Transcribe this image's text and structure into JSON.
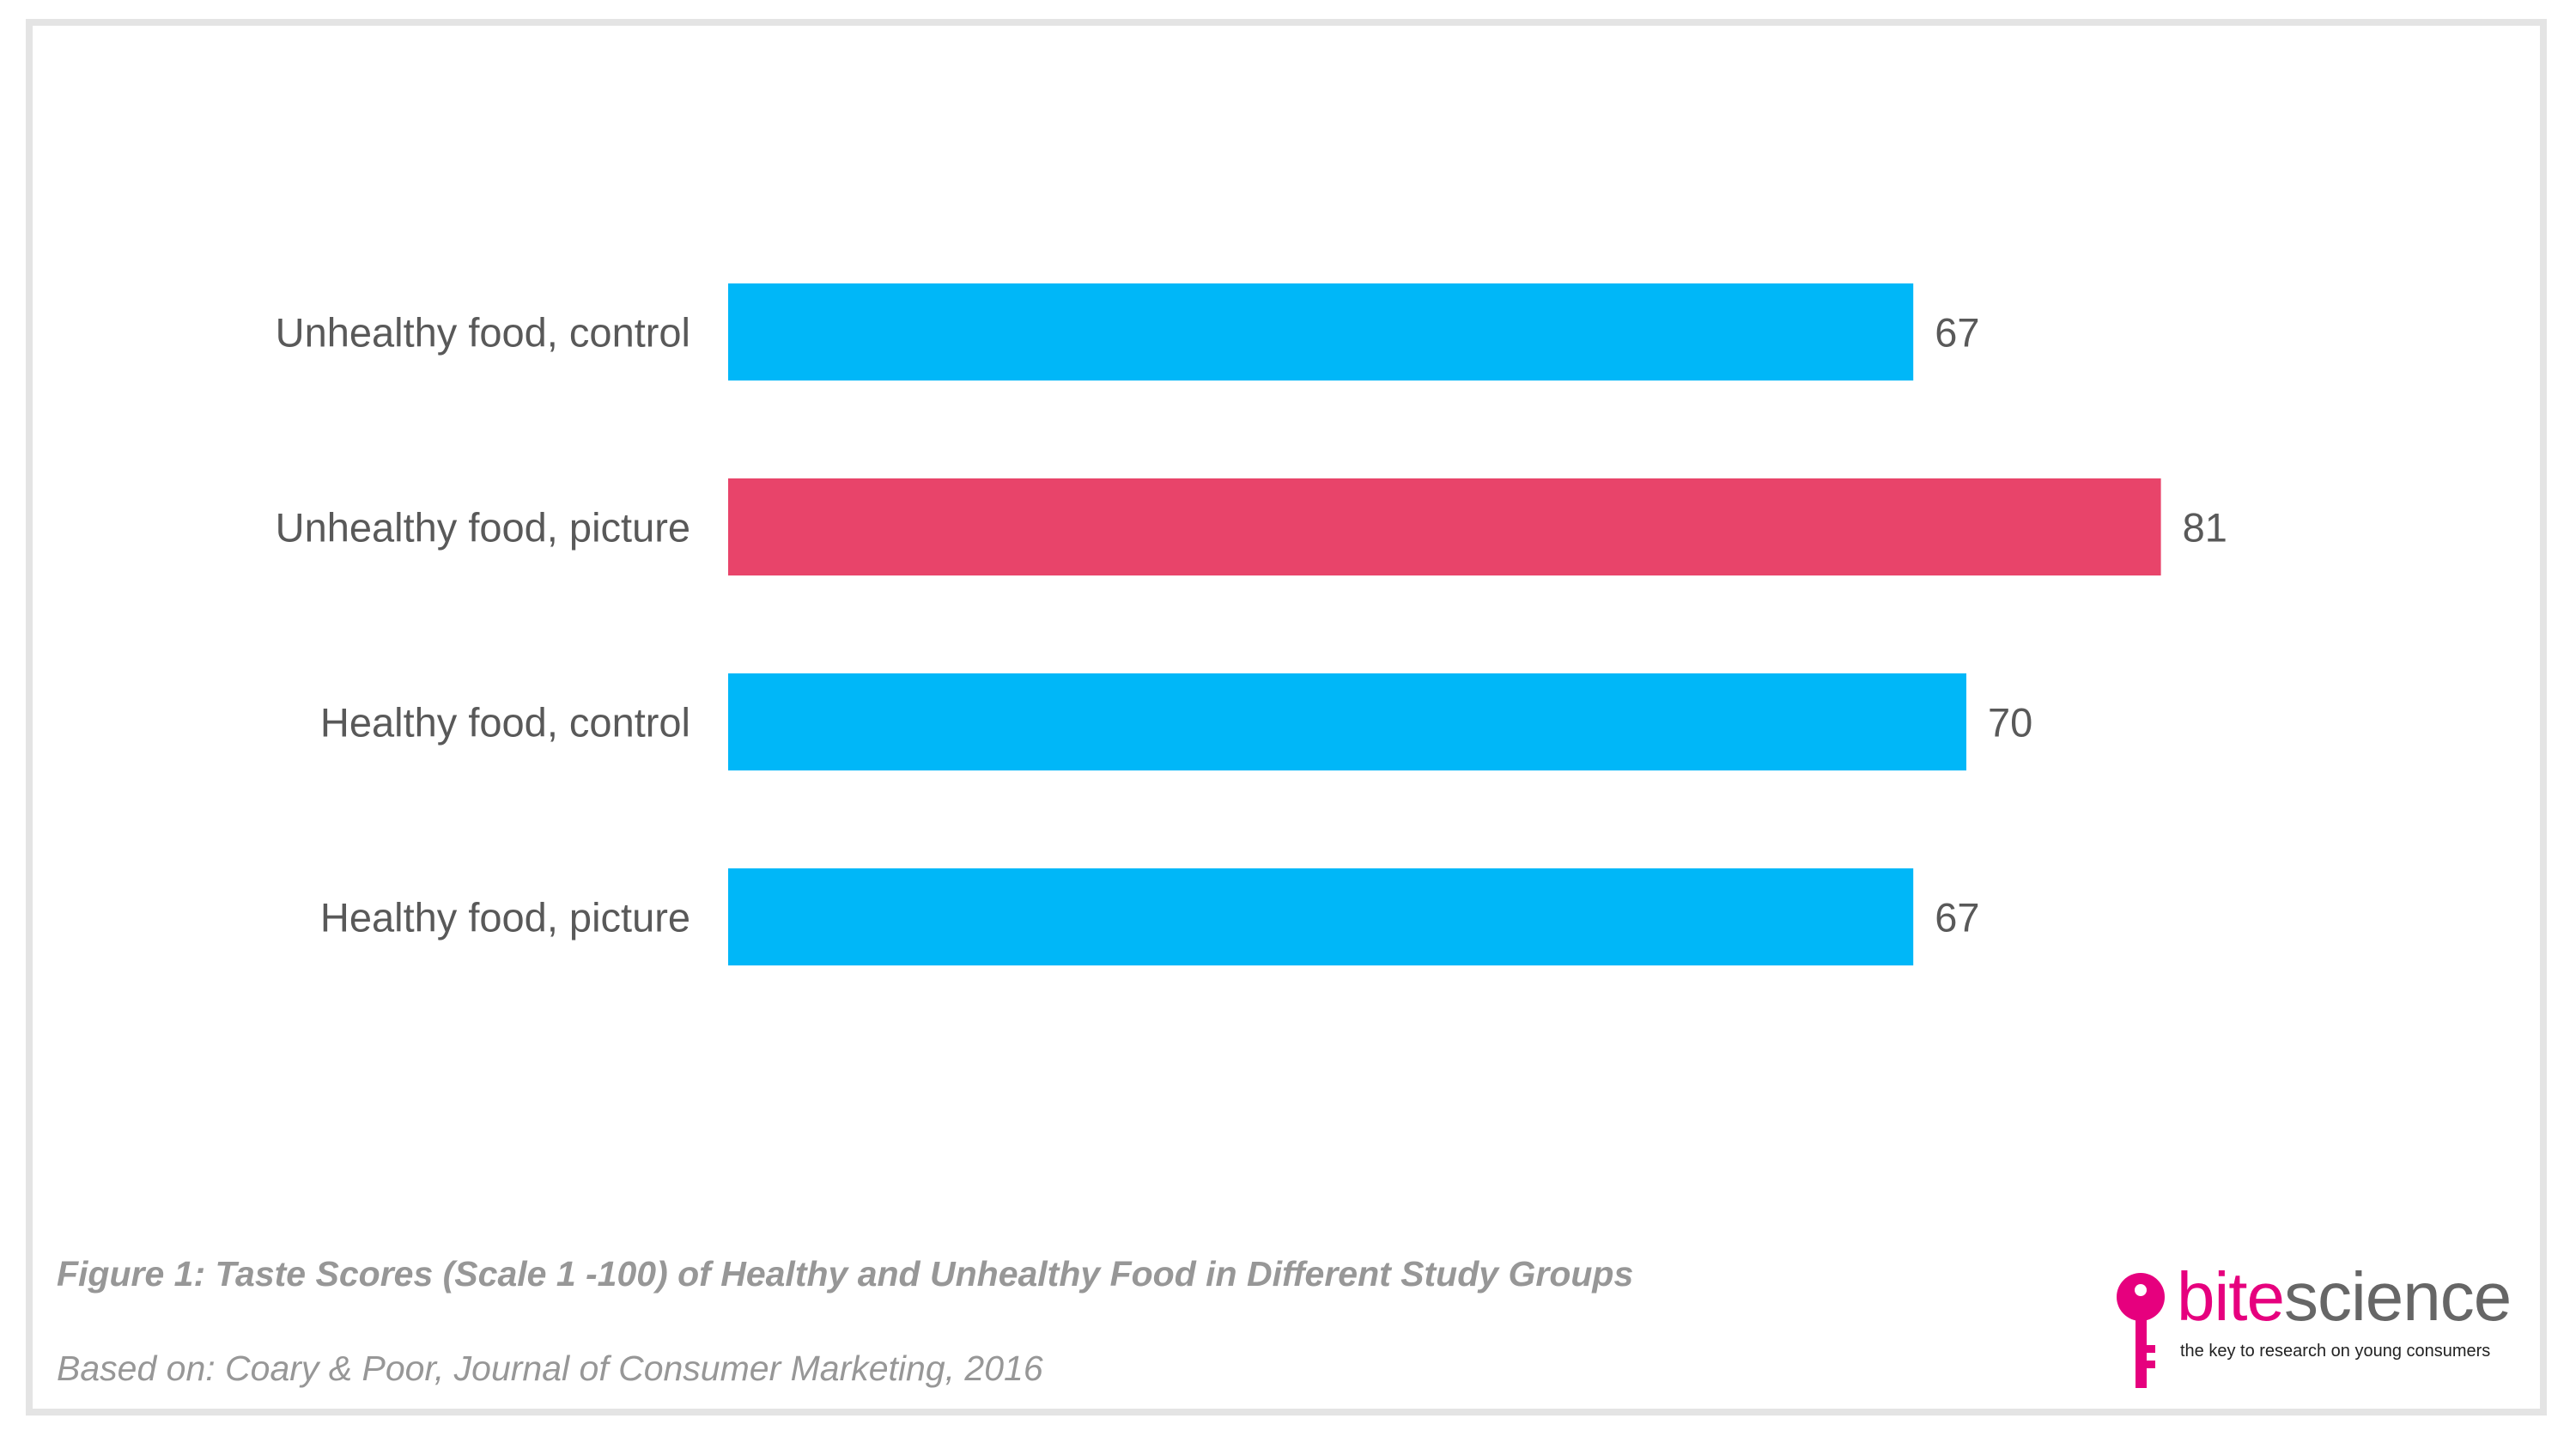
{
  "chart_data": {
    "type": "bar",
    "orientation": "horizontal",
    "categories": [
      "Unhealthy food, control",
      "Unhealthy food, picture",
      "Healthy food, control",
      "Healthy food, picture"
    ],
    "values": [
      67,
      81,
      70,
      67
    ],
    "value_labels": [
      "67",
      "81",
      "70",
      "67"
    ],
    "bar_colors": [
      "#00b7f8",
      "#e8446a",
      "#00b7f8",
      "#00b7f8"
    ],
    "grid": false,
    "legend": "none",
    "axes_visible": false
  },
  "caption": "Figure 1: Taste Scores (Scale 1 -100) of Healthy and Unhealthy Food in Different Study Groups",
  "source": "Based on: Coary & Poor, Journal of Consumer Marketing, 2016",
  "logo": {
    "word_part1": "bite",
    "word_part2": "science",
    "tagline": "the key to research on young consumers",
    "icon": "key-icon",
    "colors": {
      "accent": "#e6007e",
      "text": "#666666"
    }
  }
}
